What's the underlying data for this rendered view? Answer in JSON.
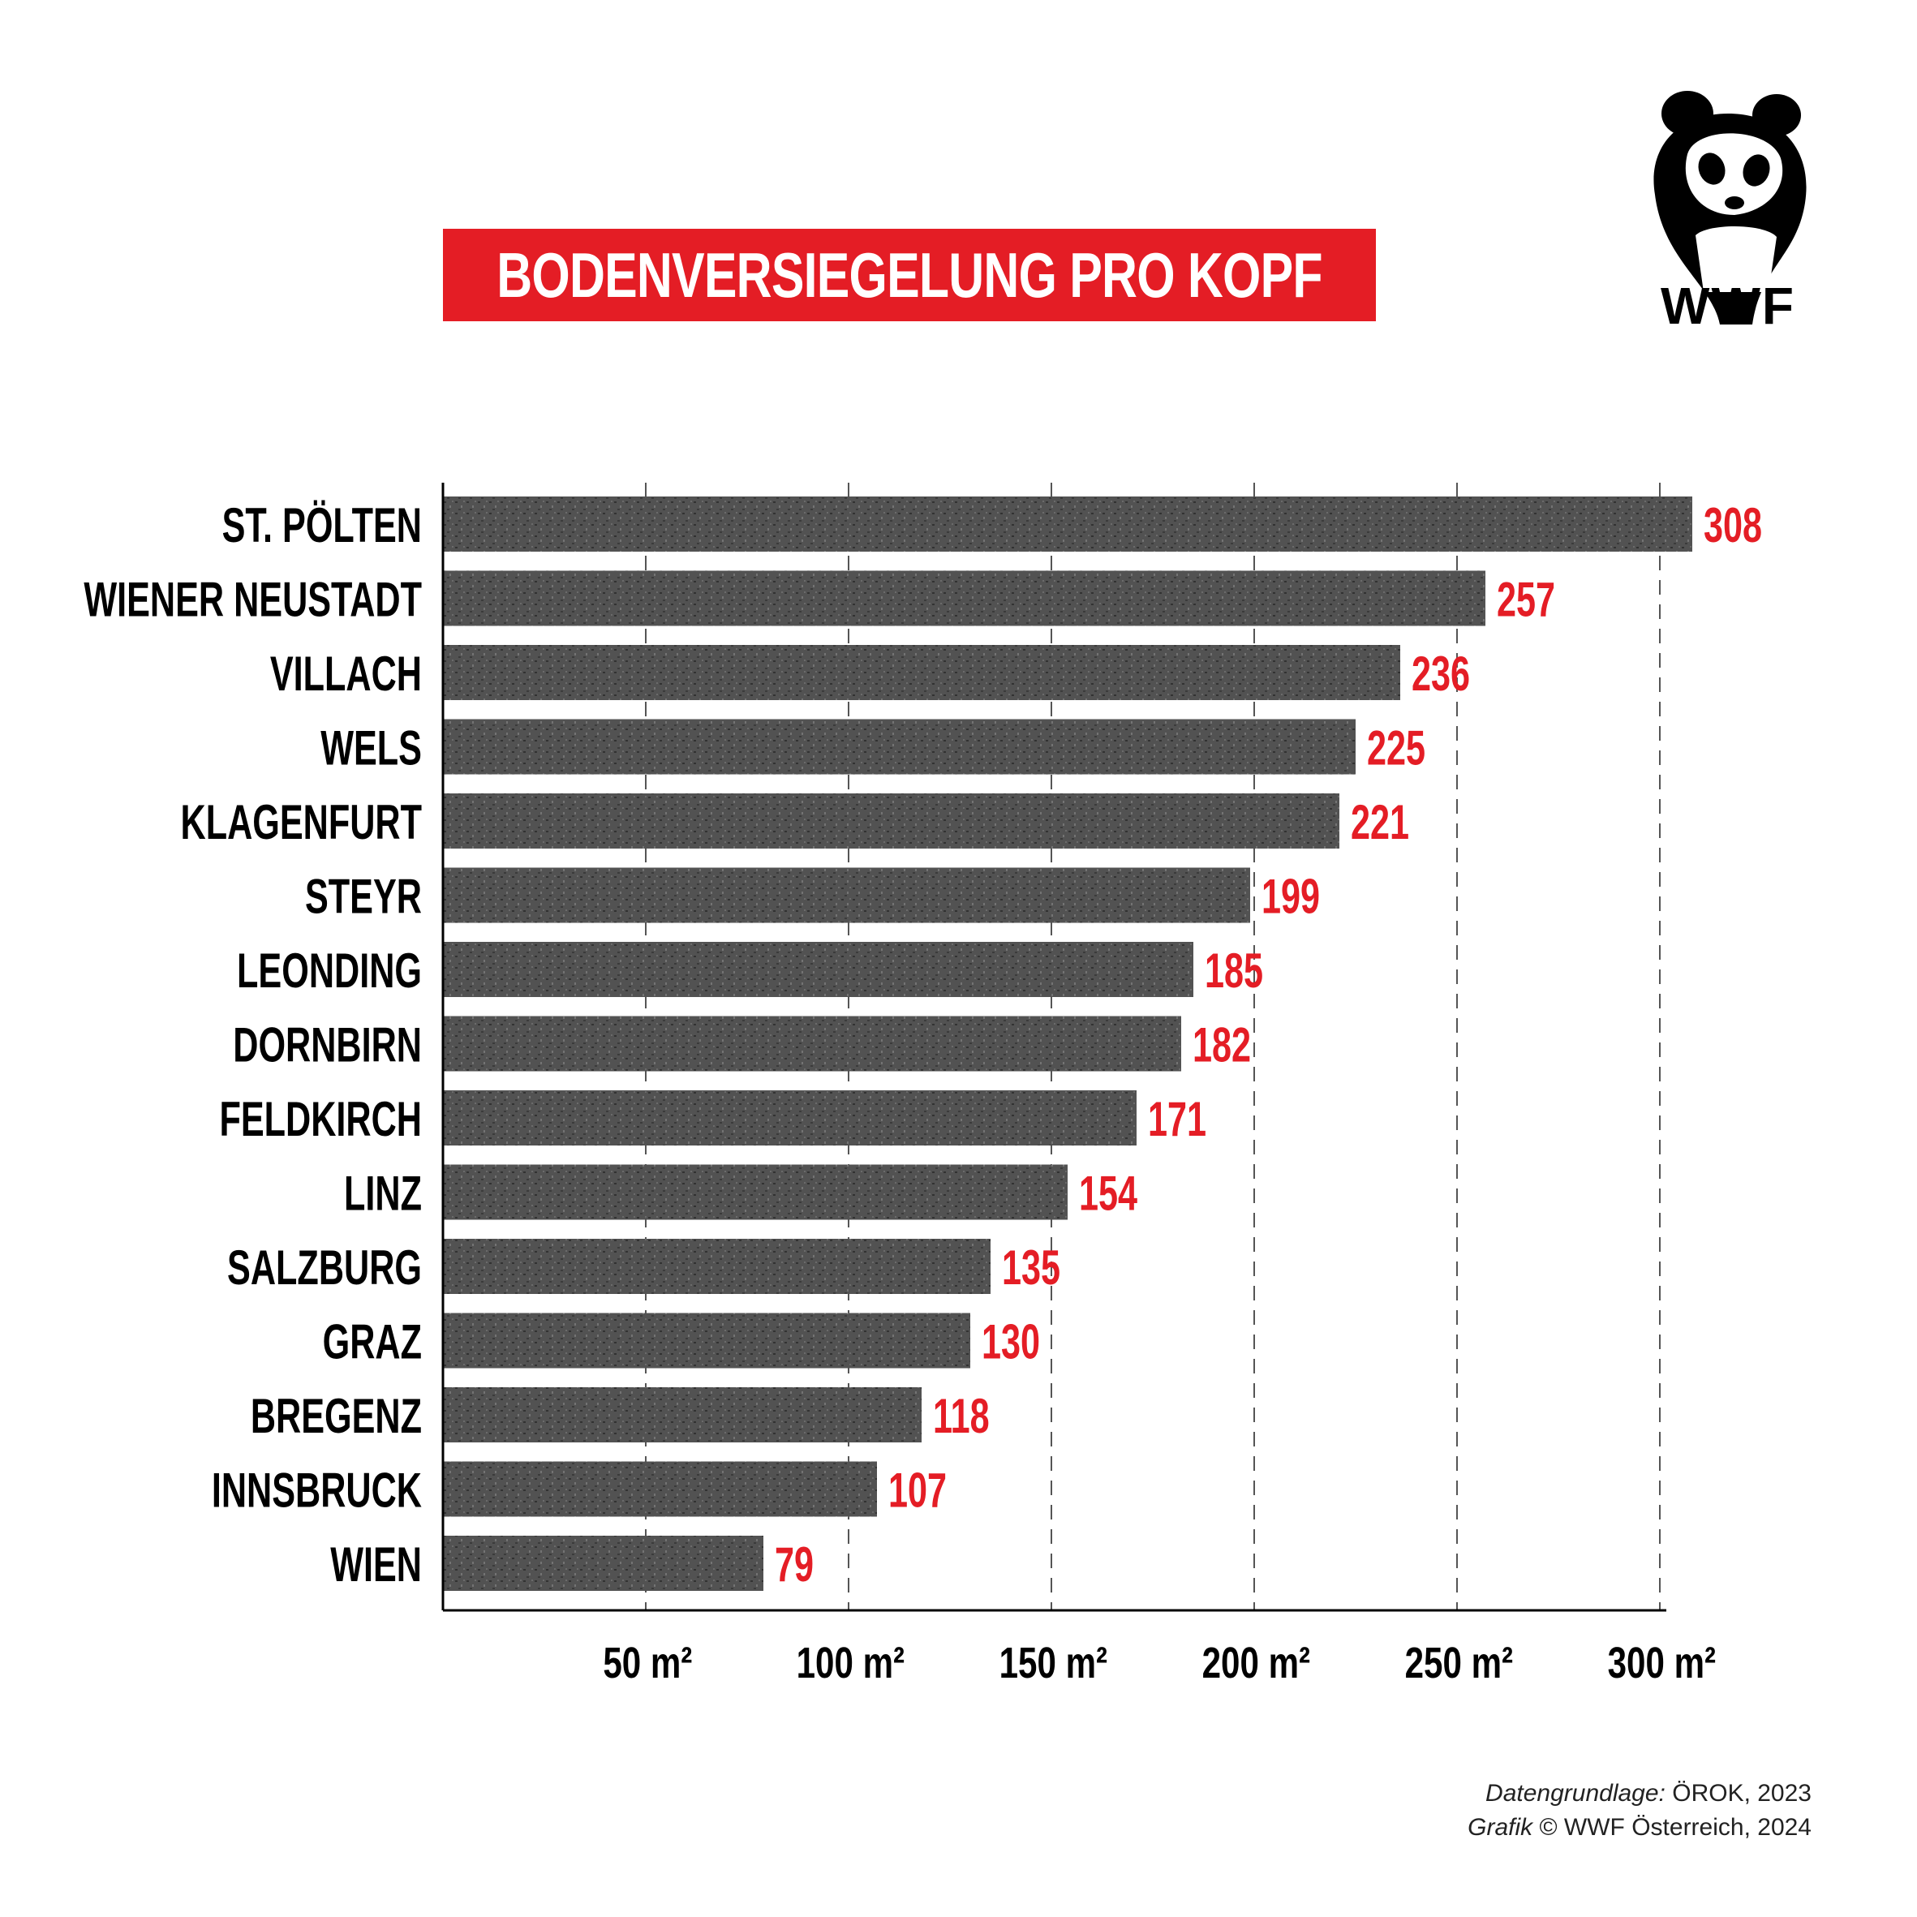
{
  "title": "BODENVERSIEGELUNG PRO KOPF",
  "logo": {
    "text": "WWF",
    "icon": "panda-icon"
  },
  "source": {
    "line1_label": "Datengrundlage:",
    "line1_value": "ÖROK, 2023",
    "line2_label": "Grafik",
    "line2_value": "© WWF Österreich, 2024"
  },
  "colors": {
    "accent": "#e41d25",
    "bar": "#5a5a5a",
    "text": "#000000"
  },
  "chart_data": {
    "type": "bar",
    "orientation": "horizontal",
    "categories": [
      "ST. PÖLTEN",
      "WIENER NEUSTADT",
      "VILLACH",
      "WELS",
      "KLAGENFURT",
      "STEYR",
      "LEONDING",
      "DORNBIRN",
      "FELDKIRCH",
      "LINZ",
      "SALZBURG",
      "GRAZ",
      "BREGENZ",
      "INNSBRUCK",
      "WIEN"
    ],
    "values": [
      308,
      257,
      236,
      225,
      221,
      199,
      185,
      182,
      171,
      154,
      135,
      130,
      118,
      107,
      79
    ],
    "xticks": [
      50,
      100,
      150,
      200,
      250,
      300
    ],
    "xtick_labels": [
      "50 m²",
      "100 m²",
      "150 m²",
      "200 m²",
      "250 m²",
      "300 m²"
    ],
    "xlim": [
      0,
      300
    ],
    "grid": "vertical dashed",
    "value_label_color": "#e41d25"
  }
}
